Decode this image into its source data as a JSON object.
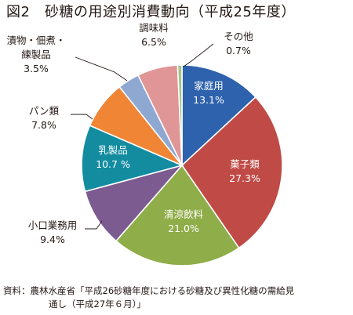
{
  "colors": {
    "kateiyo": "#2e62ad",
    "kashirui": "#c04a46",
    "seiryo": "#8fad48",
    "kokuchi": "#7b5b90",
    "nyuseihin": "#138ca0",
    "panrui": "#f08536",
    "tsukemono": "#8fa8d1",
    "chomiryo": "#e09596",
    "sonota": "#a8c48a"
  },
  "chart_data": {
    "type": "pie",
    "title": "図2　砂糖の用途別消費動向（平成25年度）",
    "unit": "%",
    "slices": [
      {
        "id": "kateiyo",
        "lines": [
          "家庭用"
        ],
        "value_label": "13.1%",
        "value": 13.1
      },
      {
        "id": "kashirui",
        "lines": [
          "菓子類"
        ],
        "value_label": "27.3%",
        "value": 27.3
      },
      {
        "id": "seiryo",
        "lines": [
          "清涼飲料"
        ],
        "value_label": "21.0%",
        "value": 21.0
      },
      {
        "id": "kokuchi",
        "lines": [
          "小口業務用"
        ],
        "value_label": "9.4%",
        "value": 9.4
      },
      {
        "id": "nyuseihin",
        "lines": [
          "乳製品"
        ],
        "value_label": "10.7 %",
        "value": 10.7
      },
      {
        "id": "panrui",
        "lines": [
          "パン類"
        ],
        "value_label": "7.8%",
        "value": 7.8
      },
      {
        "id": "tsukemono",
        "lines": [
          "漬物・佃煮・",
          "練製品"
        ],
        "value_label": "3.5%",
        "value": 3.5
      },
      {
        "id": "chomiryo",
        "lines": [
          "調味料"
        ],
        "value_label": "6.5%",
        "value": 6.5
      },
      {
        "id": "sonota",
        "lines": [
          "その他"
        ],
        "value_label": "0.7%",
        "value": 0.7
      }
    ]
  },
  "source": {
    "line1": "資料：農林水産省「平成26砂糖年度における砂糖及び異性化糖の需給見",
    "line2": "通し（平成27年６月）」"
  }
}
